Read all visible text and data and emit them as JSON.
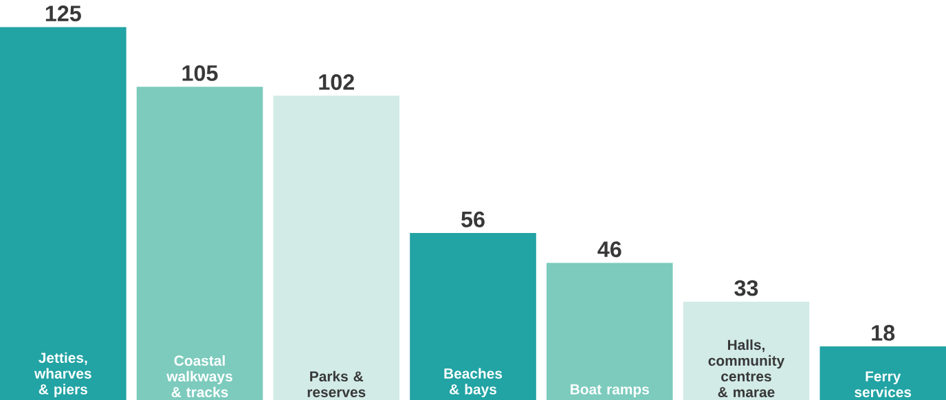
{
  "chart_data": {
    "type": "bar",
    "categories": [
      "Jetties, wharves & piers",
      "Coastal walkways & tracks",
      "Parks & reserves",
      "Beaches & bays",
      "Boat ramps",
      "Halls, community centres & marae",
      "Ferry services"
    ],
    "values": [
      125,
      105,
      102,
      56,
      46,
      33,
      18
    ],
    "colors": [
      "#22a3a4",
      "#7ccbbd",
      "#d2ebe6",
      "#22a3a4",
      "#7ccbbd",
      "#d2ebe6",
      "#22a3a4"
    ],
    "data_labels": true
  }
}
